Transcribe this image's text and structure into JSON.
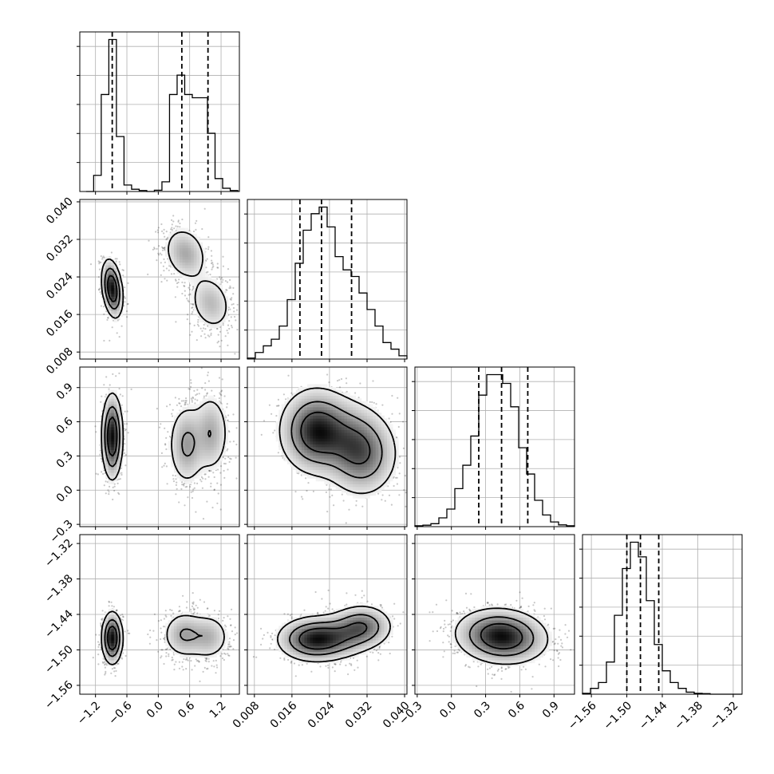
{
  "chart_data": {
    "type": "corner",
    "grid": true,
    "parameters": [
      {
        "id": "p0",
        "range": [
          -1.5,
          1.55
        ],
        "ticks": [
          -1.2,
          -0.6,
          0.0,
          0.6,
          1.2
        ],
        "tick_labels": [
          "−1.2",
          "−0.6",
          "0.0",
          "0.6",
          "1.2"
        ],
        "quantiles": [
          -0.88,
          0.45,
          0.95
        ],
        "histogram": {
          "range": [
            -1.38,
            1.52
          ],
          "counts": [
            0,
            5,
            30,
            47,
            17,
            2,
            0.7,
            0.3,
            0,
            0.4,
            3,
            30,
            36,
            30,
            29,
            29,
            18,
            4,
            1,
            0.3
          ]
        }
      },
      {
        "id": "p1",
        "range": [
          0.0065,
          0.0405
        ],
        "ticks": [
          0.008,
          0.016,
          0.024,
          0.032,
          0.04
        ],
        "tick_labels": [
          "0.008",
          "0.016",
          "0.024",
          "0.032",
          "0.040"
        ],
        "quantiles": [
          0.0177,
          0.0223,
          0.0287
        ],
        "histogram": {
          "range": [
            0.0065,
            0.0405
          ],
          "counts": [
            0.3,
            2,
            4,
            6,
            10,
            18,
            29,
            39,
            44,
            46,
            40,
            31,
            27,
            25,
            20,
            15,
            10,
            5,
            3,
            1
          ]
        }
      },
      {
        "id": "p2",
        "range": [
          -0.32,
          1.08
        ],
        "ticks": [
          -0.3,
          0.0,
          0.3,
          0.6,
          0.9
        ],
        "tick_labels": [
          "−0.3",
          "0.0",
          "0.3",
          "0.6",
          "0.9"
        ],
        "quantiles": [
          0.24,
          0.44,
          0.67
        ],
        "histogram": {
          "range": [
            -0.32,
            1.08
          ],
          "counts": [
            0.3,
            0.5,
            1,
            3,
            6,
            13,
            21,
            31,
            45,
            52,
            52,
            49,
            41,
            27,
            18,
            9,
            4,
            1.6,
            0.6,
            0.3
          ]
        }
      },
      {
        "id": "p3",
        "range": [
          -1.575,
          -1.305
        ],
        "ticks": [
          -1.56,
          -1.5,
          -1.44,
          -1.38,
          -1.32
        ],
        "tick_labels": [
          "−1.56",
          "−1.50",
          "−1.44",
          "−1.38",
          "−1.32"
        ],
        "quantiles": [
          -1.5,
          -1.477,
          -1.446
        ],
        "histogram": {
          "range": [
            -1.575,
            -1.305
          ],
          "counts": [
            0.3,
            2,
            4,
            11,
            27,
            43,
            52,
            47,
            32,
            17,
            8,
            4,
            2,
            0.7,
            0.3,
            0.2,
            0,
            0,
            0,
            0
          ]
        }
      }
    ],
    "pairs": [
      {
        "x": 0,
        "y": 1,
        "blobs": [
          {
            "mx": -0.88,
            "my": 0.0215,
            "sx": 0.09,
            "sy": 0.0028,
            "rho": -0.3,
            "w": 0.45
          },
          {
            "mx": 0.52,
            "my": 0.029,
            "sx": 0.2,
            "sy": 0.0028,
            "rho": -0.2,
            "w": 0.3
          },
          {
            "mx": 1.0,
            "my": 0.0185,
            "sx": 0.2,
            "sy": 0.003,
            "rho": -0.2,
            "w": 0.25
          }
        ]
      },
      {
        "x": 0,
        "y": 2,
        "blobs": [
          {
            "mx": -0.88,
            "my": 0.47,
            "sx": 0.09,
            "sy": 0.17,
            "rho": 0,
            "w": 0.45
          },
          {
            "mx": 0.55,
            "my": 0.4,
            "sx": 0.17,
            "sy": 0.17,
            "rho": 0,
            "w": 0.3
          },
          {
            "mx": 1.0,
            "my": 0.5,
            "sx": 0.17,
            "sy": 0.17,
            "rho": 0,
            "w": 0.25
          }
        ]
      },
      {
        "x": 0,
        "y": 3,
        "blobs": [
          {
            "mx": -0.88,
            "my": -1.48,
            "sx": 0.09,
            "sy": 0.02,
            "rho": 0,
            "w": 0.45
          },
          {
            "mx": 0.5,
            "my": -1.474,
            "sx": 0.2,
            "sy": 0.019,
            "rho": 0,
            "w": 0.3
          },
          {
            "mx": 0.95,
            "my": -1.478,
            "sx": 0.2,
            "sy": 0.019,
            "rho": 0,
            "w": 0.25
          }
        ]
      },
      {
        "x": 1,
        "y": 2,
        "blobs": [
          {
            "mx": 0.021,
            "my": 0.52,
            "sx": 0.0035,
            "sy": 0.17,
            "rho": 0,
            "w": 0.45
          },
          {
            "mx": 0.0275,
            "my": 0.45,
            "sx": 0.0042,
            "sy": 0.17,
            "rho": -0.1,
            "w": 0.3
          },
          {
            "mx": 0.031,
            "my": 0.3,
            "sx": 0.0035,
            "sy": 0.17,
            "rho": 0,
            "w": 0.25
          }
        ]
      },
      {
        "x": 1,
        "y": 3,
        "blobs": [
          {
            "mx": 0.0205,
            "my": -1.482,
            "sx": 0.0035,
            "sy": 0.017,
            "rho": 0,
            "w": 0.45
          },
          {
            "mx": 0.026,
            "my": -1.477,
            "sx": 0.0038,
            "sy": 0.018,
            "rho": 0.1,
            "w": 0.3
          },
          {
            "mx": 0.031,
            "my": -1.46,
            "sx": 0.003,
            "sy": 0.017,
            "rho": 0,
            "w": 0.25
          }
        ]
      },
      {
        "x": 2,
        "y": 3,
        "blobs": [
          {
            "mx": 0.44,
            "my": -1.477,
            "sx": 0.18,
            "sy": 0.021,
            "rho": -0.1,
            "w": 1
          }
        ]
      }
    ]
  }
}
